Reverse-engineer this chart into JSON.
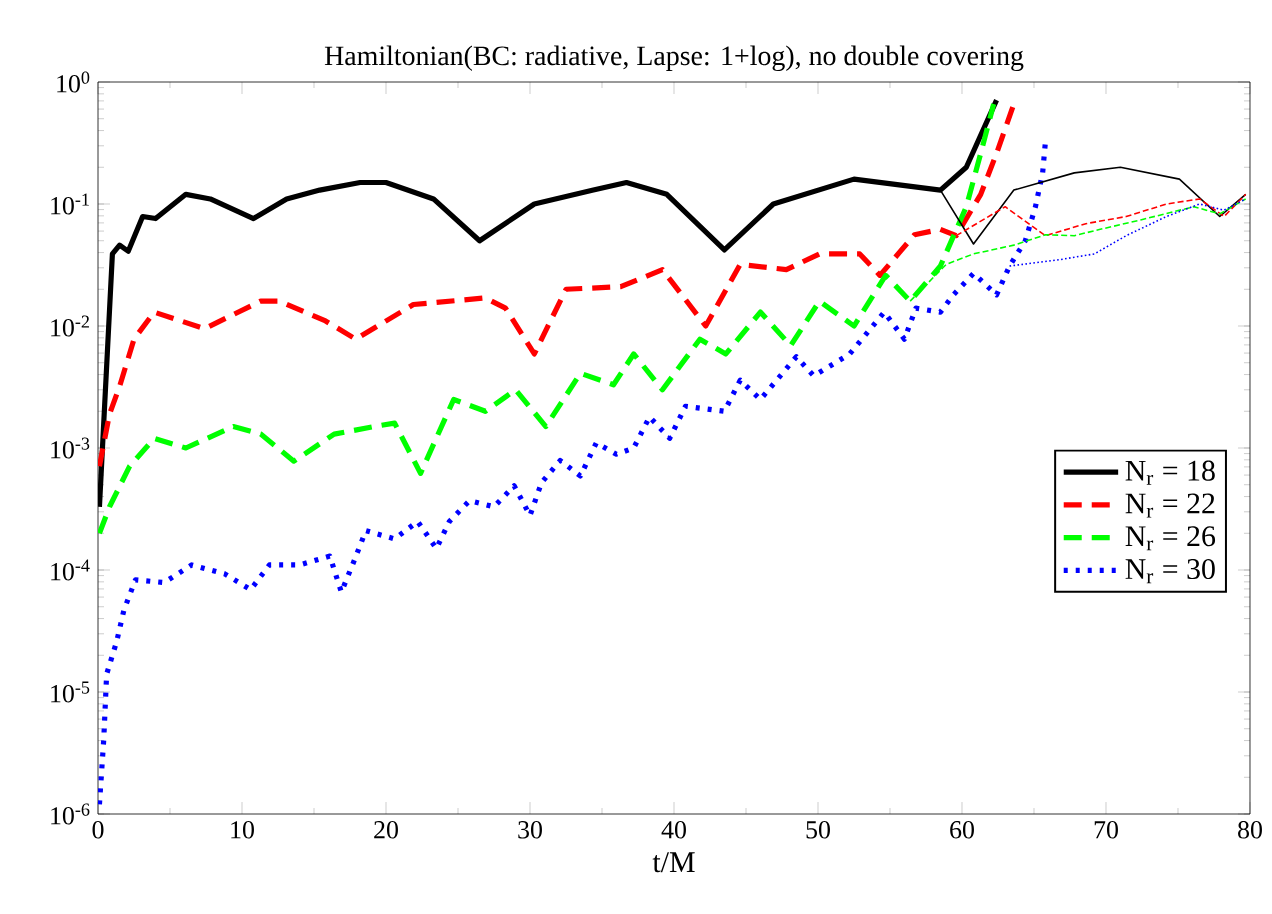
{
  "chart_data": {
    "type": "line",
    "title": "Hamiltonian(BC: radiative, Lapse: 1+log), no double covering",
    "xlabel": "t/M",
    "log": "y",
    "legend": "right",
    "xlim": [
      0,
      80
    ],
    "xticks": [
      0,
      10,
      20,
      30,
      40,
      50,
      60,
      70,
      80
    ],
    "ylim": [
      1e-06,
      1
    ],
    "yticks": [
      {
        "value": 1e-06,
        "label": "10$^{-6}$"
      },
      {
        "value": 1e-05,
        "label": "10$^{-5}$"
      },
      {
        "value": 0.0001,
        "label": "10$^{-4}$"
      },
      {
        "value": 0.001,
        "label": "10$^{-3}$"
      },
      {
        "value": 0.01,
        "label": "10$^{-2}$"
      },
      {
        "value": 0.1,
        "label": "10$^{-1}$"
      },
      {
        "value": 1,
        "label": "10$^{0}$"
      }
    ],
    "series": [
      {
        "name": "N$_{r}$ = 18",
        "color": "#000000",
        "line_style": "solid",
        "x": [
          0.1,
          1.0,
          1.5,
          2.1,
          3.1,
          4.0,
          6.1,
          7.8,
          10.8,
          13.1,
          15.4,
          18.2,
          20,
          23.3,
          26.5,
          30.3,
          34.4,
          36.7,
          39.5,
          43.5,
          46.9,
          52.5,
          58.5,
          60.3,
          62.4
        ],
        "values": [
          0.00033,
          0.039,
          0.046,
          0.041,
          0.079,
          0.076,
          0.12,
          0.11,
          0.076,
          0.11,
          0.13,
          0.15,
          0.15,
          0.11,
          0.05,
          0.1,
          0.13,
          0.15,
          0.12,
          0.042,
          0.1,
          0.16,
          0.13,
          0.2,
          0.71
        ]
      },
      {
        "name": "N$_{r}$ = 22",
        "color": "#ff0000",
        "line_style": "dashed",
        "x": [
          0.1,
          0.8,
          1.5,
          2.5,
          3.9,
          7.4,
          11.3,
          12.6,
          15.8,
          17.9,
          21.9,
          26.9,
          28.3,
          30.3,
          32.5,
          36.3,
          39.2,
          42.2,
          44.6,
          47.8,
          50.1,
          52.9,
          54.3,
          56.7,
          58.5,
          59.6,
          61.3,
          62.4,
          63.6
        ],
        "values": [
          0.00071,
          0.0019,
          0.0032,
          0.0078,
          0.013,
          0.0095,
          0.016,
          0.016,
          0.011,
          0.0078,
          0.015,
          0.017,
          0.014,
          0.0059,
          0.02,
          0.021,
          0.029,
          0.01,
          0.032,
          0.029,
          0.039,
          0.039,
          0.026,
          0.056,
          0.062,
          0.055,
          0.12,
          0.26,
          0.66
        ]
      },
      {
        "name": "N$_{r}$ = 26",
        "color": "#00ff00",
        "line_style": "dashed",
        "x": [
          0.1,
          0.8,
          2.2,
          3.9,
          6.1,
          9.4,
          11.3,
          13.6,
          16.4,
          19.2,
          20.6,
          22.4,
          24.7,
          26.9,
          29,
          31.1,
          33.5,
          35.8,
          37.2,
          39.2,
          41.8,
          43.6,
          46,
          48.1,
          50.1,
          52.5,
          54.7,
          56.4,
          58.5,
          60.3,
          61.3,
          62.2
        ],
        "values": [
          0.0002,
          0.00033,
          0.00071,
          0.0012,
          0.001,
          0.0015,
          0.0013,
          0.00078,
          0.0013,
          0.0015,
          0.0016,
          0.00062,
          0.0025,
          0.002,
          0.003,
          0.0015,
          0.0041,
          0.0033,
          0.0059,
          0.003,
          0.0078,
          0.0059,
          0.013,
          0.0069,
          0.016,
          0.01,
          0.026,
          0.016,
          0.031,
          0.095,
          0.26,
          0.66
        ]
      },
      {
        "name": "N$_{r}$ = 30",
        "color": "#0000ff",
        "line_style": "dotted",
        "x": [
          0.1,
          0.4,
          0.6,
          1.3,
          1.8,
          2.6,
          4.6,
          6.5,
          8.8,
          10.6,
          11.9,
          14,
          16.1,
          16.9,
          17.8,
          18.6,
          20.6,
          22.2,
          23.5,
          24.4,
          25.8,
          27.5,
          28.9,
          30,
          30.8,
          32.1,
          33.5,
          34.6,
          36,
          37.2,
          38.3,
          39.7,
          40.8,
          43.5,
          44.6,
          46,
          48.5,
          49.7,
          52.2,
          54.6,
          56,
          56.8,
          58.5,
          59.4,
          60.8,
          62.4,
          63.3,
          64.4,
          65.1,
          65.6,
          65.8
        ],
        "values": [
          1.2e-06,
          4.1e-06,
          1.4e-05,
          2.6e-05,
          4.7e-05,
          8.3e-05,
          7.9e-05,
          0.00011,
          9.3e-05,
          6.9e-05,
          0.00011,
          0.00011,
          0.00013,
          6.6e-05,
          0.00012,
          0.00021,
          0.00018,
          0.00025,
          0.00015,
          0.00025,
          0.00037,
          0.00033,
          0.00049,
          0.00028,
          0.00052,
          0.00079,
          0.00059,
          0.0011,
          0.00089,
          0.001,
          0.0018,
          0.0012,
          0.0022,
          0.002,
          0.0036,
          0.0025,
          0.0056,
          0.0039,
          0.0059,
          0.013,
          0.0078,
          0.014,
          0.013,
          0.018,
          0.027,
          0.018,
          0.031,
          0.05,
          0.095,
          0.18,
          0.33
        ]
      },
      {
        "color": "#000000",
        "line_style": "solid",
        "x": [
          58.5,
          60.8,
          63.6,
          67.8,
          71,
          75.1,
          77.9,
          79.7
        ],
        "values": [
          0.13,
          0.047,
          0.13,
          0.18,
          0.2,
          0.16,
          0.079,
          0.12
        ]
      },
      {
        "color": "#ff0000",
        "line_style": "dashed",
        "x": [
          59.6,
          63,
          65.8,
          68.6,
          71.4,
          74.2,
          76.5,
          78.2,
          79.7
        ],
        "values": [
          0.055,
          0.095,
          0.055,
          0.069,
          0.079,
          0.1,
          0.11,
          0.079,
          0.12
        ]
      },
      {
        "color": "#00ff00",
        "line_style": "dashed",
        "x": [
          56.4,
          58.9,
          60.8,
          63.6,
          65.8,
          67.8,
          69.6,
          72.4,
          76.1,
          77.9,
          79.7
        ],
        "values": [
          0.016,
          0.032,
          0.039,
          0.046,
          0.056,
          0.055,
          0.062,
          0.074,
          0.095,
          0.083,
          0.11
        ]
      },
      {
        "color": "#0000ff",
        "line_style": "dotted",
        "x": [
          63.3,
          66.8,
          69.2,
          71.4,
          74.2,
          76.5,
          78.2,
          79.7
        ],
        "values": [
          0.031,
          0.035,
          0.039,
          0.055,
          0.079,
          0.1,
          0.089,
          0.11
        ]
      }
    ]
  }
}
